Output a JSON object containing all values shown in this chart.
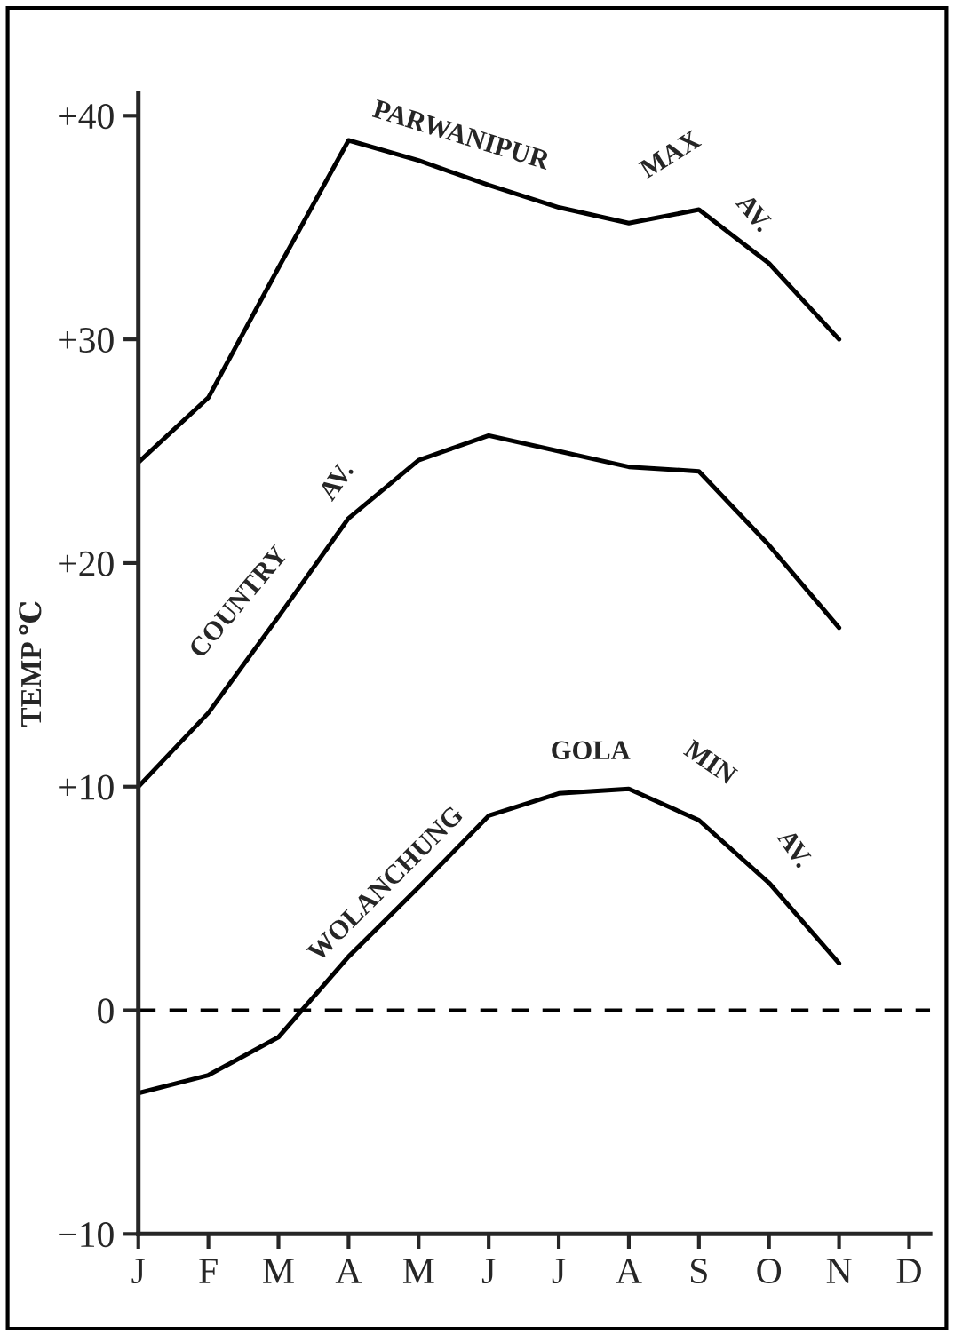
{
  "chart_data": {
    "type": "line",
    "ylabel": "TEMP ℃",
    "categories": [
      "J",
      "F",
      "M",
      "A",
      "M",
      "J",
      "J",
      "A",
      "S",
      "O",
      "N",
      "D"
    ],
    "ylim": [
      -10,
      41
    ],
    "yticks": [
      {
        "value": -10,
        "label": "−10"
      },
      {
        "value": 0,
        "label": "0"
      },
      {
        "value": 10,
        "label": "+10"
      },
      {
        "value": 20,
        "label": "+20"
      },
      {
        "value": 30,
        "label": "+30"
      },
      {
        "value": 40,
        "label": "+40"
      }
    ],
    "series": [
      {
        "color": "#000000",
        "values": [
          24.5,
          27.4,
          33.2,
          38.9,
          38.0,
          36.9,
          35.9,
          35.2,
          35.8,
          33.4,
          30.0,
          null
        ]
      },
      {
        "color": "#000000",
        "values": [
          10,
          13.3,
          17.6,
          22.0,
          24.6,
          25.7,
          25.0,
          24.3,
          24.1,
          20.8,
          17.1,
          null
        ]
      },
      {
        "color": "#000000",
        "values": [
          -3.7,
          -2.9,
          -1.2,
          2.4,
          5.5,
          8.7,
          9.7,
          9.9,
          8.5,
          5.7,
          2.1,
          null
        ]
      }
    ],
    "ref_lines": [
      {
        "axis": "y",
        "value": 0,
        "color": "#000000",
        "line_style": "dashed"
      }
    ],
    "annotations": [
      "PARWANIPUR",
      "MAX",
      "AV.",
      "COUNTRY",
      "AV.",
      "WOLANCHUNG",
      "GOLA",
      "MIN",
      "AV."
    ],
    "grid": false,
    "legend": false,
    "line_style": "solid",
    "marker": "none"
  }
}
